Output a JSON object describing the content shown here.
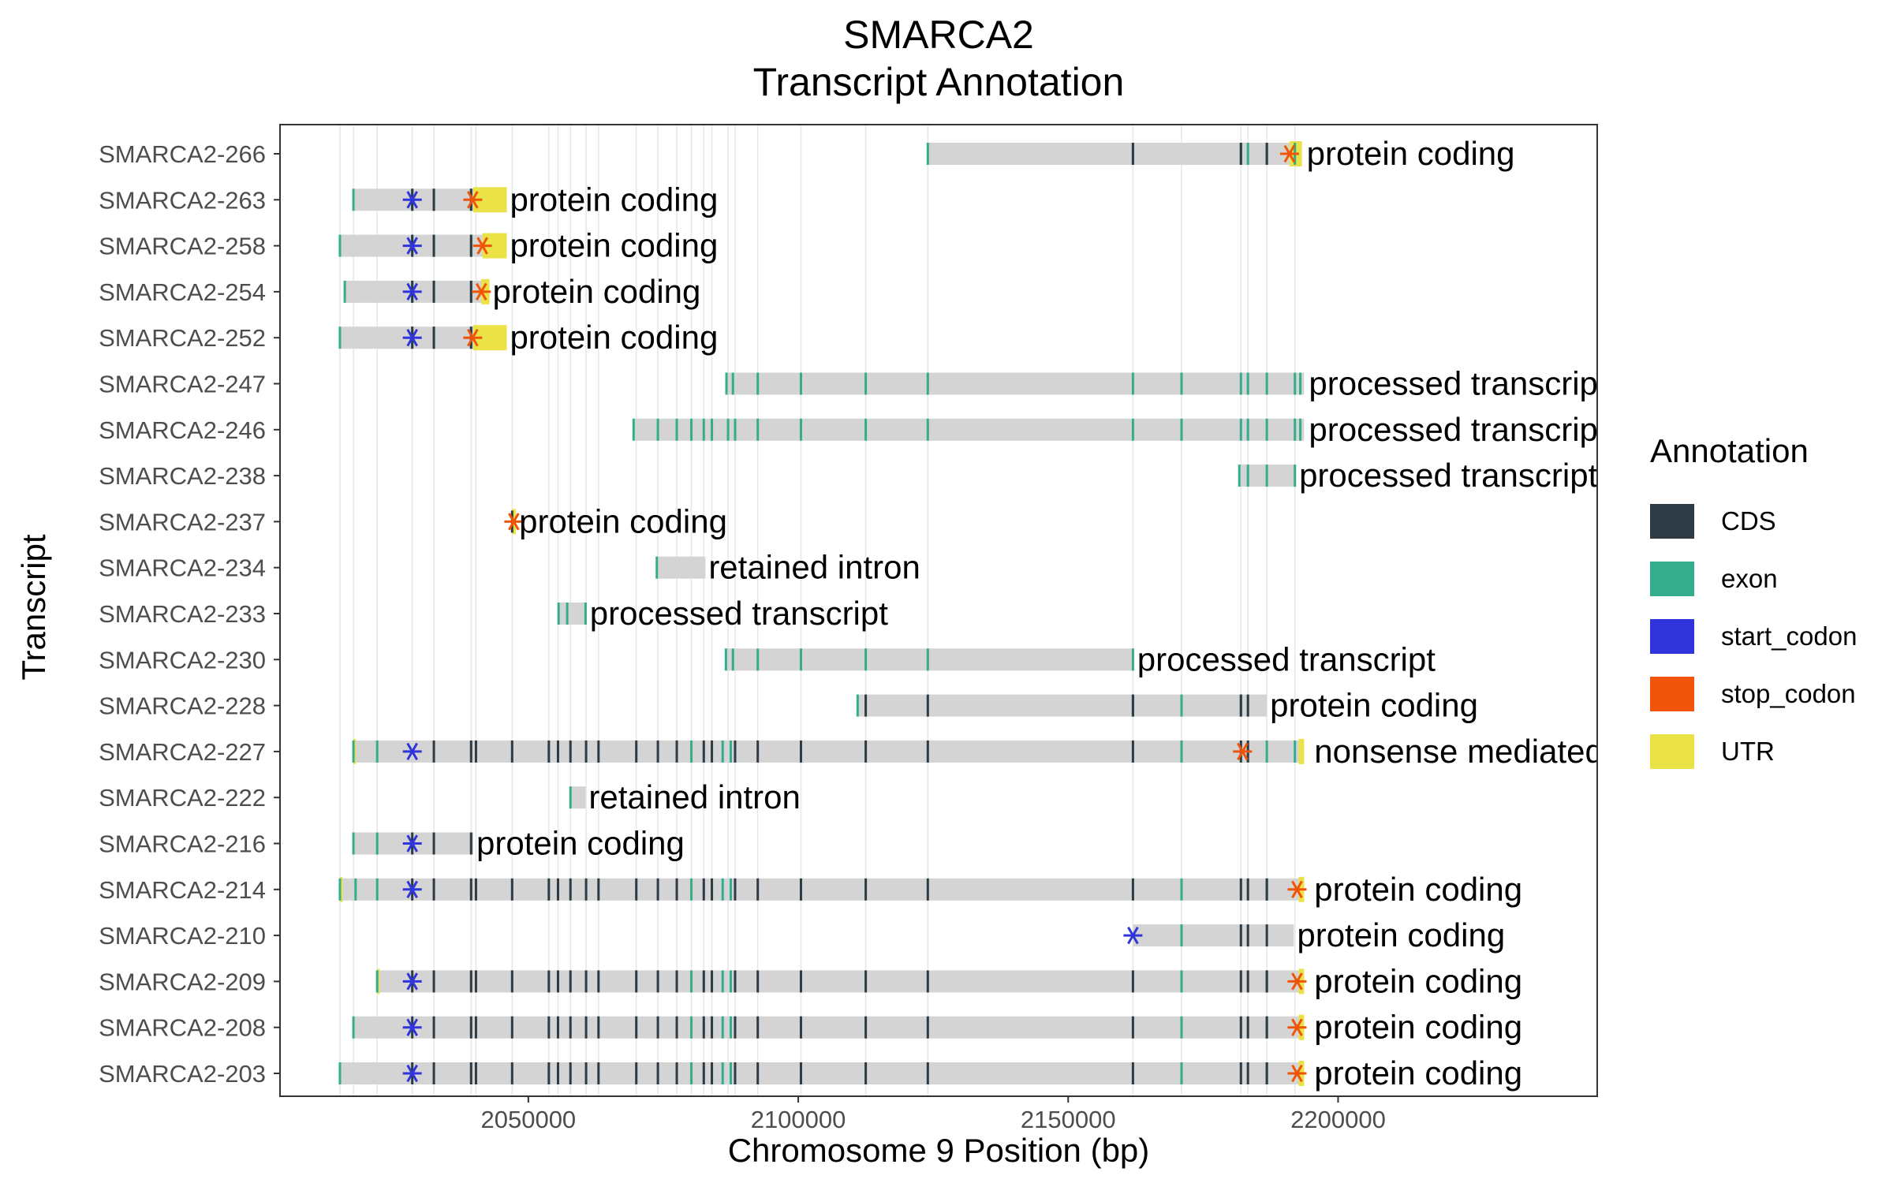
{
  "chart_data": {
    "type": "gantt",
    "title": "SMARCA2",
    "subtitle": "Transcript Annotation",
    "xlabel": "Chromosome 9 Position (bp)",
    "ylabel": "Transcript",
    "xlim": [
      2004000,
      2248000
    ],
    "xticks": [
      2050000,
      2100000,
      2150000,
      2200000
    ],
    "x_tick_labels": [
      "2050000",
      "2100000",
      "2150000",
      "2200000"
    ],
    "grid": true,
    "legend_title": "Annotation",
    "legend_position": "right",
    "legend": [
      {
        "name": "CDS",
        "color": "#2e3a44"
      },
      {
        "name": "exon",
        "color": "#33ad8c"
      },
      {
        "name": "start_codon",
        "color": "#2f35db"
      },
      {
        "name": "stop_codon",
        "color": "#ef5408"
      },
      {
        "name": "UTR",
        "color": "#eae246"
      }
    ],
    "gene_body_color": "#d4d4d4",
    "exon_positions": [
      2015100,
      2017600,
      2022000,
      2028500,
      2032500,
      2039400,
      2040300,
      2047000,
      2053800,
      2055500,
      2057800,
      2060700,
      2063000,
      2070000,
      2074000,
      2077500,
      2080200,
      2082500,
      2084000,
      2087000,
      2088300,
      2092500,
      2100500,
      2112500,
      2124000,
      2162000,
      2171000,
      2182000,
      2183300,
      2186800,
      2192000
    ],
    "transcripts": [
      {
        "id": "SMARCA2-266",
        "biotype": "protein coding",
        "start": 2124000,
        "end": 2193300,
        "exons": [
          2124000,
          2162000,
          2182000,
          2183300,
          2186800,
          2192000
        ],
        "cds": [
          2162000,
          2182000,
          2186800
        ],
        "start_codons": [],
        "stop_codons": [
          2191000
        ],
        "utr": [
          [
            2191000,
            2193300
          ]
        ],
        "label_x": 2193600
      },
      {
        "id": "SMARCA2-263",
        "biotype": "protein coding",
        "start": 2017600,
        "end": 2046000,
        "exons": [
          2017600,
          2028500,
          2032500,
          2039400
        ],
        "cds": [
          2028500,
          2032500,
          2039400
        ],
        "start_codons": [
          2028500
        ],
        "stop_codons": [
          2039700
        ],
        "utr": [
          [
            2039800,
            2046000
          ]
        ],
        "label_x": 2046000
      },
      {
        "id": "SMARCA2-258",
        "biotype": "protein coding",
        "start": 2015100,
        "end": 2046000,
        "exons": [
          2015100,
          2028500,
          2032500,
          2039400
        ],
        "cds": [
          2028500,
          2032500,
          2039400
        ],
        "start_codons": [
          2028500
        ],
        "stop_codons": [
          2041500
        ],
        "utr": [
          [
            2041500,
            2046000
          ]
        ],
        "label_x": 2046000
      },
      {
        "id": "SMARCA2-254",
        "biotype": "protein coding",
        "start": 2016000,
        "end": 2042800,
        "exons": [
          2016000,
          2028500,
          2032500,
          2039400
        ],
        "cds": [
          2028500,
          2032500,
          2039400
        ],
        "start_codons": [
          2028500
        ],
        "stop_codons": [
          2041300
        ],
        "utr": [
          [
            2041300,
            2042800
          ]
        ],
        "label_x": 2042800
      },
      {
        "id": "SMARCA2-252",
        "biotype": "protein coding",
        "start": 2015100,
        "end": 2046000,
        "exons": [
          2015100,
          2028500,
          2032500,
          2039400
        ],
        "cds": [
          2028500,
          2032500,
          2039400
        ],
        "start_codons": [
          2028500
        ],
        "stop_codons": [
          2039700
        ],
        "utr": [
          [
            2039800,
            2046000
          ]
        ],
        "label_x": 2046000
      },
      {
        "id": "SMARCA2-247",
        "biotype": "processed transcript",
        "start": 2086700,
        "end": 2193700,
        "exons": [
          2086700,
          2087900,
          2092500,
          2100500,
          2112500,
          2124000,
          2162000,
          2171000,
          2182000,
          2183300,
          2186800,
          2192000,
          2193000
        ],
        "cds": [],
        "start_codons": [],
        "stop_codons": [],
        "utr": [],
        "label_x": 2194000
      },
      {
        "id": "SMARCA2-246",
        "biotype": "processed transcript",
        "start": 2069500,
        "end": 2193700,
        "exons": [
          2069500,
          2074000,
          2077500,
          2080200,
          2082500,
          2084000,
          2087000,
          2088300,
          2092500,
          2100500,
          2112500,
          2124000,
          2162000,
          2171000,
          2182000,
          2183300,
          2186800,
          2192000,
          2193000
        ],
        "cds": [],
        "start_codons": [],
        "stop_codons": [],
        "utr": [],
        "label_x": 2194000
      },
      {
        "id": "SMARCA2-238",
        "biotype": "processed transcript",
        "start": 2181700,
        "end": 2192200,
        "exons": [
          2181700,
          2183300,
          2186800,
          2192000
        ],
        "cds": [],
        "start_codons": [],
        "stop_codons": [],
        "utr": [],
        "label_x": 2192200
      },
      {
        "id": "SMARCA2-237",
        "biotype": "protein coding",
        "start": 2046800,
        "end": 2047700,
        "exons": [],
        "cds": [
          2047000
        ],
        "start_codons": [],
        "stop_codons": [
          2047300
        ],
        "utr": [
          [
            2047000,
            2047700
          ]
        ],
        "label_x": 2047700
      },
      {
        "id": "SMARCA2-234",
        "biotype": "retained intron",
        "start": 2073800,
        "end": 2082800,
        "exons": [
          2073800
        ],
        "cds": [],
        "start_codons": [],
        "stop_codons": [],
        "utr": [],
        "label_x": 2082800
      },
      {
        "id": "SMARCA2-233",
        "biotype": "processed transcript",
        "start": 2055600,
        "end": 2060800,
        "exons": [
          2055600,
          2057200,
          2060600
        ],
        "cds": [],
        "start_codons": [],
        "stop_codons": [],
        "utr": [],
        "label_x": 2060800
      },
      {
        "id": "SMARCA2-230",
        "biotype": "processed transcript",
        "start": 2086600,
        "end": 2162200,
        "exons": [
          2086600,
          2087900,
          2092500,
          2100500,
          2112500,
          2124000,
          2162000
        ],
        "cds": [],
        "start_codons": [],
        "stop_codons": [],
        "utr": [],
        "label_x": 2162200
      },
      {
        "id": "SMARCA2-228",
        "biotype": "protein coding",
        "start": 2111000,
        "end": 2186800,
        "exons": [
          2111000,
          2162000,
          2171000,
          2182000
        ],
        "cds": [
          2112500,
          2124000,
          2162000,
          2182000,
          2183300
        ],
        "start_codons": [],
        "stop_codons": [],
        "utr": [],
        "label_x": 2186800
      },
      {
        "id": "SMARCA2-227",
        "biotype": "nonsense mediated decay",
        "start": 2017600,
        "end": 2193700,
        "exons": [
          2017600,
          2022000,
          2080200,
          2086000,
          2087500,
          2171000,
          2186800,
          2192000
        ],
        "cds": [
          2032500,
          2039400,
          2040300,
          2047000,
          2053800,
          2055500,
          2057800,
          2060700,
          2063000,
          2070000,
          2074000,
          2077500,
          2082500,
          2084000,
          2088300,
          2092500,
          2100500,
          2112500,
          2124000,
          2162000,
          2182000,
          2183300
        ],
        "start_codons": [
          2028500
        ],
        "stop_codons": [
          2182300
        ],
        "utr": [
          [
            2017600,
            2018000
          ],
          [
            2192700,
            2193700
          ]
        ],
        "label_x": 2195000
      },
      {
        "id": "SMARCA2-222",
        "biotype": "retained intron",
        "start": 2057800,
        "end": 2060600,
        "exons": [
          2057800
        ],
        "cds": [],
        "start_codons": [],
        "stop_codons": [],
        "utr": [],
        "label_x": 2060600
      },
      {
        "id": "SMARCA2-216",
        "biotype": "protein coding",
        "start": 2017600,
        "end": 2039800,
        "exons": [
          2017600,
          2022000
        ],
        "cds": [
          2028500,
          2032500,
          2039400
        ],
        "start_codons": [
          2028500
        ],
        "stop_codons": [],
        "utr": [],
        "label_x": 2039800
      },
      {
        "id": "SMARCA2-214",
        "biotype": "protein coding",
        "start": 2015100,
        "end": 2193700,
        "exons": [
          2015100,
          2018000,
          2022000,
          2080200,
          2086000,
          2087500,
          2171000,
          2186800
        ],
        "cds": [
          2028500,
          2032500,
          2039400,
          2040300,
          2047000,
          2053800,
          2055500,
          2057800,
          2060700,
          2063000,
          2070000,
          2074000,
          2077500,
          2082500,
          2084000,
          2088300,
          2092500,
          2100500,
          2112500,
          2124000,
          2162000,
          2182000,
          2183300,
          2186800
        ],
        "start_codons": [
          2028500
        ],
        "stop_codons": [
          2192400
        ],
        "utr": [
          [
            2015100,
            2015600
          ],
          [
            2192700,
            2193700
          ]
        ],
        "label_x": 2195000
      },
      {
        "id": "SMARCA2-210",
        "biotype": "protein coding",
        "start": 2162000,
        "end": 2191800,
        "exons": [
          2171000
        ],
        "cds": [
          2182000,
          2183300,
          2186800
        ],
        "start_codons": [
          2162000
        ],
        "stop_codons": [],
        "utr": [],
        "label_x": 2191800
      },
      {
        "id": "SMARCA2-209",
        "biotype": "protein coding",
        "start": 2022000,
        "end": 2193700,
        "exons": [
          2022000,
          2080200,
          2086000,
          2087500,
          2171000,
          2186800
        ],
        "cds": [
          2028500,
          2032500,
          2039400,
          2040300,
          2047000,
          2053800,
          2055500,
          2057800,
          2060700,
          2063000,
          2070000,
          2074000,
          2077500,
          2082500,
          2084000,
          2088300,
          2092500,
          2100500,
          2112500,
          2124000,
          2162000,
          2182000,
          2183300,
          2186800
        ],
        "start_codons": [
          2028500
        ],
        "stop_codons": [
          2192400
        ],
        "utr": [
          [
            2022000,
            2022400
          ],
          [
            2192700,
            2193700
          ]
        ],
        "label_x": 2195000
      },
      {
        "id": "SMARCA2-208",
        "biotype": "protein coding",
        "start": 2017600,
        "end": 2193700,
        "exons": [
          2017600,
          2080200,
          2086000,
          2087500,
          2171000,
          2186800
        ],
        "cds": [
          2028500,
          2032500,
          2039400,
          2040300,
          2047000,
          2053800,
          2055500,
          2057800,
          2060700,
          2063000,
          2070000,
          2074000,
          2077500,
          2082500,
          2084000,
          2088300,
          2092500,
          2100500,
          2112500,
          2124000,
          2162000,
          2182000,
          2183300,
          2186800
        ],
        "start_codons": [
          2028500
        ],
        "stop_codons": [
          2192400
        ],
        "utr": [
          [
            2192700,
            2193700
          ]
        ],
        "label_x": 2195000
      },
      {
        "id": "SMARCA2-203",
        "biotype": "protein coding",
        "start": 2015100,
        "end": 2193700,
        "exons": [
          2015100,
          2080200,
          2086000,
          2087500,
          2171000,
          2186800
        ],
        "cds": [
          2028500,
          2032500,
          2039400,
          2040300,
          2047000,
          2053800,
          2055500,
          2057800,
          2060700,
          2063000,
          2070000,
          2074000,
          2077500,
          2082500,
          2084000,
          2088300,
          2092500,
          2100500,
          2112500,
          2124000,
          2162000,
          2182000,
          2183300,
          2186800
        ],
        "start_codons": [
          2028500
        ],
        "stop_codons": [
          2192400
        ],
        "utr": [
          [
            2192700,
            2193700
          ]
        ],
        "label_x": 2195000
      }
    ]
  }
}
